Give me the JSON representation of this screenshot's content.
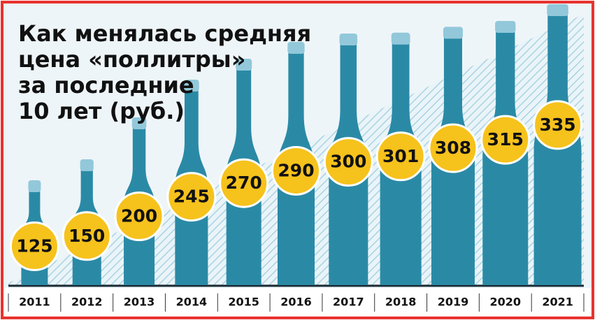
{
  "chart_data": {
    "type": "bottle-bar",
    "title": [
      "Как менялась средняя",
      "цена «поллитры»",
      "за последние",
      "10 лет (руб.)"
    ],
    "categories": [
      "2011",
      "2012",
      "2013",
      "2014",
      "2015",
      "2016",
      "2017",
      "2018",
      "2019",
      "2020",
      "2021"
    ],
    "values": [
      125,
      150,
      200,
      245,
      270,
      290,
      300,
      301,
      308,
      315,
      335
    ],
    "color": "#2a8aa6",
    "cap_color": "#92c8da",
    "label_color": "#f6c21c"
  }
}
